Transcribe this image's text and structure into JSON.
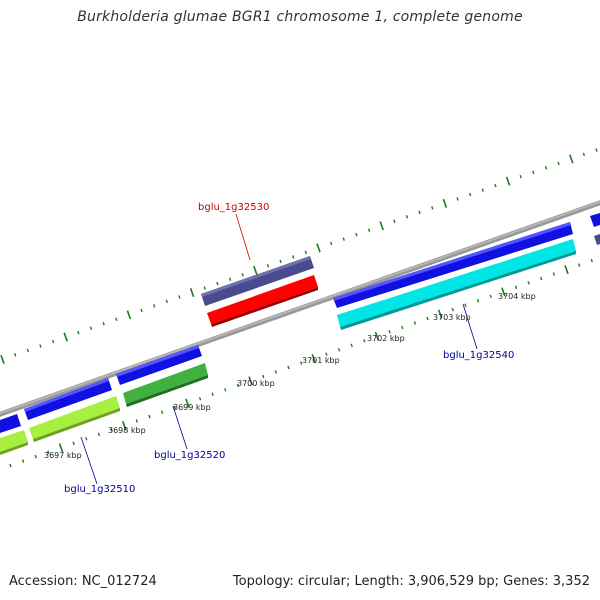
{
  "title": "Burkholderia glumae BGR1 chromosome 1, complete genome",
  "accession": "Accession: NC_012724",
  "topology": "Topology: circular; Length: 3,906,529 bp; Genes: 3,352",
  "colors": {
    "backbone": "#888888",
    "tick": "#1e7a1e",
    "label_red": "#cc0000",
    "label_blue": "#000099",
    "gene_navy": "#4a4a8e",
    "gene_red": "#ff0000",
    "gene_blue": "#1010e0",
    "gene_cyan": "#00e5e5",
    "gene_lime": "#a8f040",
    "gene_green": "#40b040"
  },
  "scale_labels": [
    "3697 kbp",
    "3698 kbp",
    "3699 kbp",
    "3700 kbp",
    "3701 kbp",
    "3702 kbp",
    "3703 kbp",
    "3704 kbp"
  ],
  "gene_labels": [
    {
      "text": "bglu_1g32530",
      "color": "red"
    },
    {
      "text": "bglu_1g32540",
      "color": "blue"
    },
    {
      "text": "bglu_1g32520",
      "color": "blue"
    },
    {
      "text": "bglu_1g32510",
      "color": "blue"
    }
  ]
}
